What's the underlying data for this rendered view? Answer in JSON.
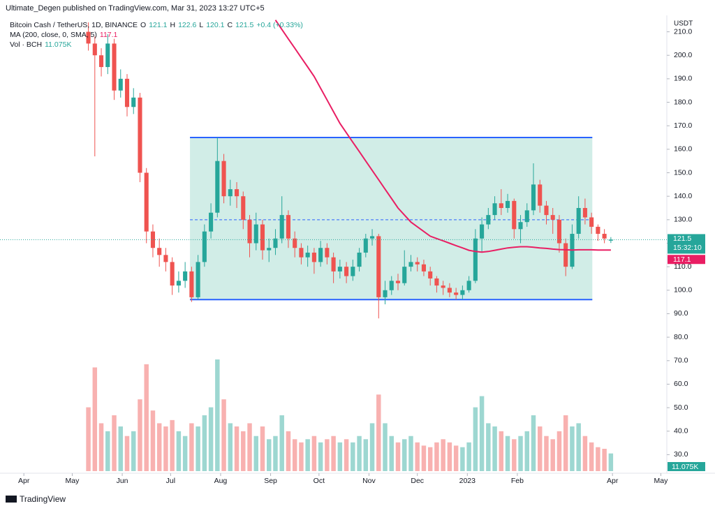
{
  "header": "Ultimate_Degen published on TradingView.com, Mar 31, 2023 13:27 UTC+5",
  "footer": "TradingView",
  "chart_data": {
    "type": "candlestick",
    "legend": {
      "symbol": "Bitcoin Cash / TetherUS, 1D, BINANCE",
      "ohlc_labels": [
        "O",
        "H",
        "L",
        "C"
      ],
      "change": "+0.4 (+0.33%)",
      "ma_label": "MA (200, close, 0, SMA, 5)",
      "volume_label": "Vol · BCH",
      "volume_value": "11.075K"
    },
    "y_axis_unit": "USDT",
    "countdown": "15:32:10",
    "up_color": "#26a69a",
    "down_color": "#ef5350",
    "x": [
      40,
      44,
      48,
      52,
      56,
      60,
      64,
      68,
      72,
      76,
      80,
      84,
      88,
      92,
      96,
      100,
      104,
      108,
      112,
      116,
      120,
      124,
      128,
      132,
      136,
      140,
      144,
      148,
      152,
      156,
      160,
      164,
      168,
      172,
      176,
      180,
      184,
      188,
      192,
      196,
      200,
      204,
      208,
      212,
      216,
      220,
      224,
      228,
      232,
      236,
      240,
      244,
      248,
      252,
      256,
      260,
      264,
      268,
      272,
      276,
      280,
      284,
      288,
      292,
      296,
      300,
      304,
      308,
      312,
      316,
      320,
      324,
      328,
      332,
      336,
      340,
      344,
      348,
      352,
      356,
      360,
      364
    ],
    "open": [
      210,
      205,
      200,
      195,
      205,
      185,
      190,
      178,
      182,
      150,
      125,
      118,
      115,
      112,
      102,
      104,
      108,
      97,
      112,
      125,
      133,
      155,
      140,
      143,
      140,
      130,
      120,
      128,
      117,
      118,
      122,
      132,
      122,
      118,
      114,
      116,
      112,
      118,
      114,
      108,
      110,
      106,
      110,
      116,
      122,
      123,
      97,
      100,
      104,
      103,
      110,
      112,
      111,
      108,
      105,
      102,
      101,
      99,
      98,
      100,
      104,
      122,
      128,
      132,
      137,
      135,
      138,
      126,
      129,
      134,
      145,
      136,
      132,
      130,
      120,
      110,
      124,
      135,
      131,
      127,
      124,
      121.1
    ],
    "high": [
      214,
      208,
      203,
      209,
      207,
      194,
      192,
      186,
      184,
      152,
      128,
      122,
      118,
      114,
      108,
      112,
      110,
      115,
      128,
      137,
      165,
      158,
      147,
      146,
      142,
      132,
      133,
      130,
      122,
      126,
      140,
      134,
      125,
      120,
      119,
      118,
      121,
      120,
      116,
      113,
      112,
      113,
      118,
      124,
      126,
      124,
      104,
      106,
      107,
      117,
      115,
      114,
      113,
      110,
      106,
      104,
      103,
      101,
      102,
      106,
      126,
      131,
      135,
      140,
      143,
      141,
      139,
      132,
      137,
      154,
      147,
      138,
      135,
      132,
      122,
      128,
      140,
      139,
      133,
      128,
      126,
      122.6
    ],
    "low": [
      202,
      157,
      191,
      192,
      181,
      182,
      174,
      175,
      146,
      120,
      114,
      110,
      108,
      98,
      99,
      101,
      95,
      96,
      110,
      122,
      131,
      137,
      136,
      135,
      126,
      114,
      117,
      113,
      112,
      115,
      120,
      118,
      114,
      111,
      110,
      107,
      110,
      111,
      103,
      105,
      103,
      104,
      108,
      114,
      119,
      88,
      94,
      98,
      100,
      102,
      108,
      108,
      106,
      102,
      99,
      98,
      97,
      96,
      96,
      99,
      103,
      116,
      126,
      130,
      132,
      133,
      122,
      120,
      127,
      132,
      133,
      128,
      124,
      116,
      106,
      109,
      122,
      128,
      124,
      121,
      120,
      120.1
    ],
    "close": [
      205,
      200,
      195,
      205,
      185,
      190,
      178,
      182,
      150,
      125,
      118,
      115,
      112,
      102,
      104,
      108,
      97,
      112,
      125,
      133,
      155,
      140,
      143,
      140,
      130,
      120,
      128,
      117,
      118,
      122,
      132,
      122,
      118,
      114,
      116,
      112,
      118,
      114,
      108,
      110,
      106,
      110,
      116,
      122,
      123,
      97,
      100,
      104,
      103,
      110,
      112,
      111,
      108,
      105,
      102,
      101,
      99,
      98,
      100,
      104,
      122,
      128,
      132,
      137,
      135,
      138,
      126,
      129,
      134,
      145,
      136,
      132,
      130,
      120,
      110,
      124,
      135,
      131,
      127,
      124,
      122,
      121.5
    ],
    "volume": [
      40,
      65,
      30,
      25,
      35,
      28,
      22,
      25,
      45,
      67,
      38,
      30,
      28,
      32,
      25,
      22,
      30,
      28,
      35,
      40,
      70,
      45,
      30,
      28,
      25,
      30,
      22,
      28,
      20,
      22,
      35,
      25,
      20,
      18,
      20,
      22,
      18,
      20,
      22,
      18,
      20,
      18,
      22,
      20,
      30,
      48,
      30,
      22,
      18,
      20,
      22,
      18,
      16,
      15,
      18,
      20,
      18,
      16,
      15,
      18,
      40,
      47,
      30,
      28,
      25,
      22,
      20,
      22,
      25,
      35,
      28,
      22,
      20,
      25,
      35,
      28,
      30,
      22,
      18,
      15,
      14,
      11.075
    ],
    "ma": {
      "color": "#e91e63",
      "values": [
        null,
        null,
        null,
        null,
        null,
        null,
        null,
        null,
        null,
        null,
        null,
        null,
        null,
        null,
        null,
        null,
        null,
        null,
        null,
        null,
        null,
        null,
        null,
        null,
        null,
        null,
        null,
        null,
        null,
        215,
        211,
        207,
        203,
        199,
        195,
        191,
        186,
        181,
        176,
        171,
        167,
        163,
        159,
        155,
        151,
        147,
        143,
        139,
        135,
        132,
        129,
        127,
        125,
        123,
        122,
        121,
        120,
        119,
        118,
        117,
        116.5,
        116.2,
        116.5,
        117,
        117.5,
        118,
        118.3,
        118.5,
        118.5,
        118.3,
        118,
        117.8,
        117.5,
        117.3,
        117.2,
        117.1,
        117.2,
        117.2,
        117.2,
        117.1,
        117.1,
        117.1
      ]
    },
    "range_box": {
      "x": [
        103,
        352.5
      ],
      "top": 165,
      "bottom": 96,
      "mid": 130,
      "fill": "#d1ede7",
      "line_color": "#2962ff"
    },
    "xlim": [
      -14.8,
      398.7
    ],
    "ylim": [
      22.1,
      217
    ],
    "xticks": [
      {
        "value": 0,
        "label": "Apr"
      },
      {
        "value": 30,
        "label": "May"
      },
      {
        "value": 61,
        "label": "Jun"
      },
      {
        "value": 91,
        "label": "Jul"
      },
      {
        "value": 122,
        "label": "Aug"
      },
      {
        "value": 153,
        "label": "Sep"
      },
      {
        "value": 183,
        "label": "Oct"
      },
      {
        "value": 214,
        "label": "Nov"
      },
      {
        "value": 244,
        "label": "Dec"
      },
      {
        "value": 275,
        "label": "2023"
      },
      {
        "value": 306,
        "label": "Feb"
      },
      {
        "value": 365,
        "label": "Apr"
      },
      {
        "value": 395,
        "label": "May"
      }
    ],
    "yticks": [
      {
        "value": 30,
        "label": "30.0"
      },
      {
        "value": 40,
        "label": "40.0"
      },
      {
        "value": 50,
        "label": "50.0"
      },
      {
        "value": 60,
        "label": "60.0"
      },
      {
        "value": 70,
        "label": "70.0"
      },
      {
        "value": 80,
        "label": "80.0"
      },
      {
        "value": 90,
        "label": "90.0"
      },
      {
        "value": 100,
        "label": "100.0"
      },
      {
        "value": 110,
        "label": "110.0"
      },
      {
        "value": 120,
        "label": "120.0"
      },
      {
        "value": 130,
        "label": "130.0"
      },
      {
        "value": 140,
        "label": "140.0"
      },
      {
        "value": 150,
        "label": "150.0"
      },
      {
        "value": 160,
        "label": "160.0"
      },
      {
        "value": 170,
        "label": "170.0"
      },
      {
        "value": 180,
        "label": "180.0"
      },
      {
        "value": 190,
        "label": "190.0"
      },
      {
        "value": 200,
        "label": "200.0"
      },
      {
        "value": 210,
        "label": "210.0"
      }
    ]
  }
}
